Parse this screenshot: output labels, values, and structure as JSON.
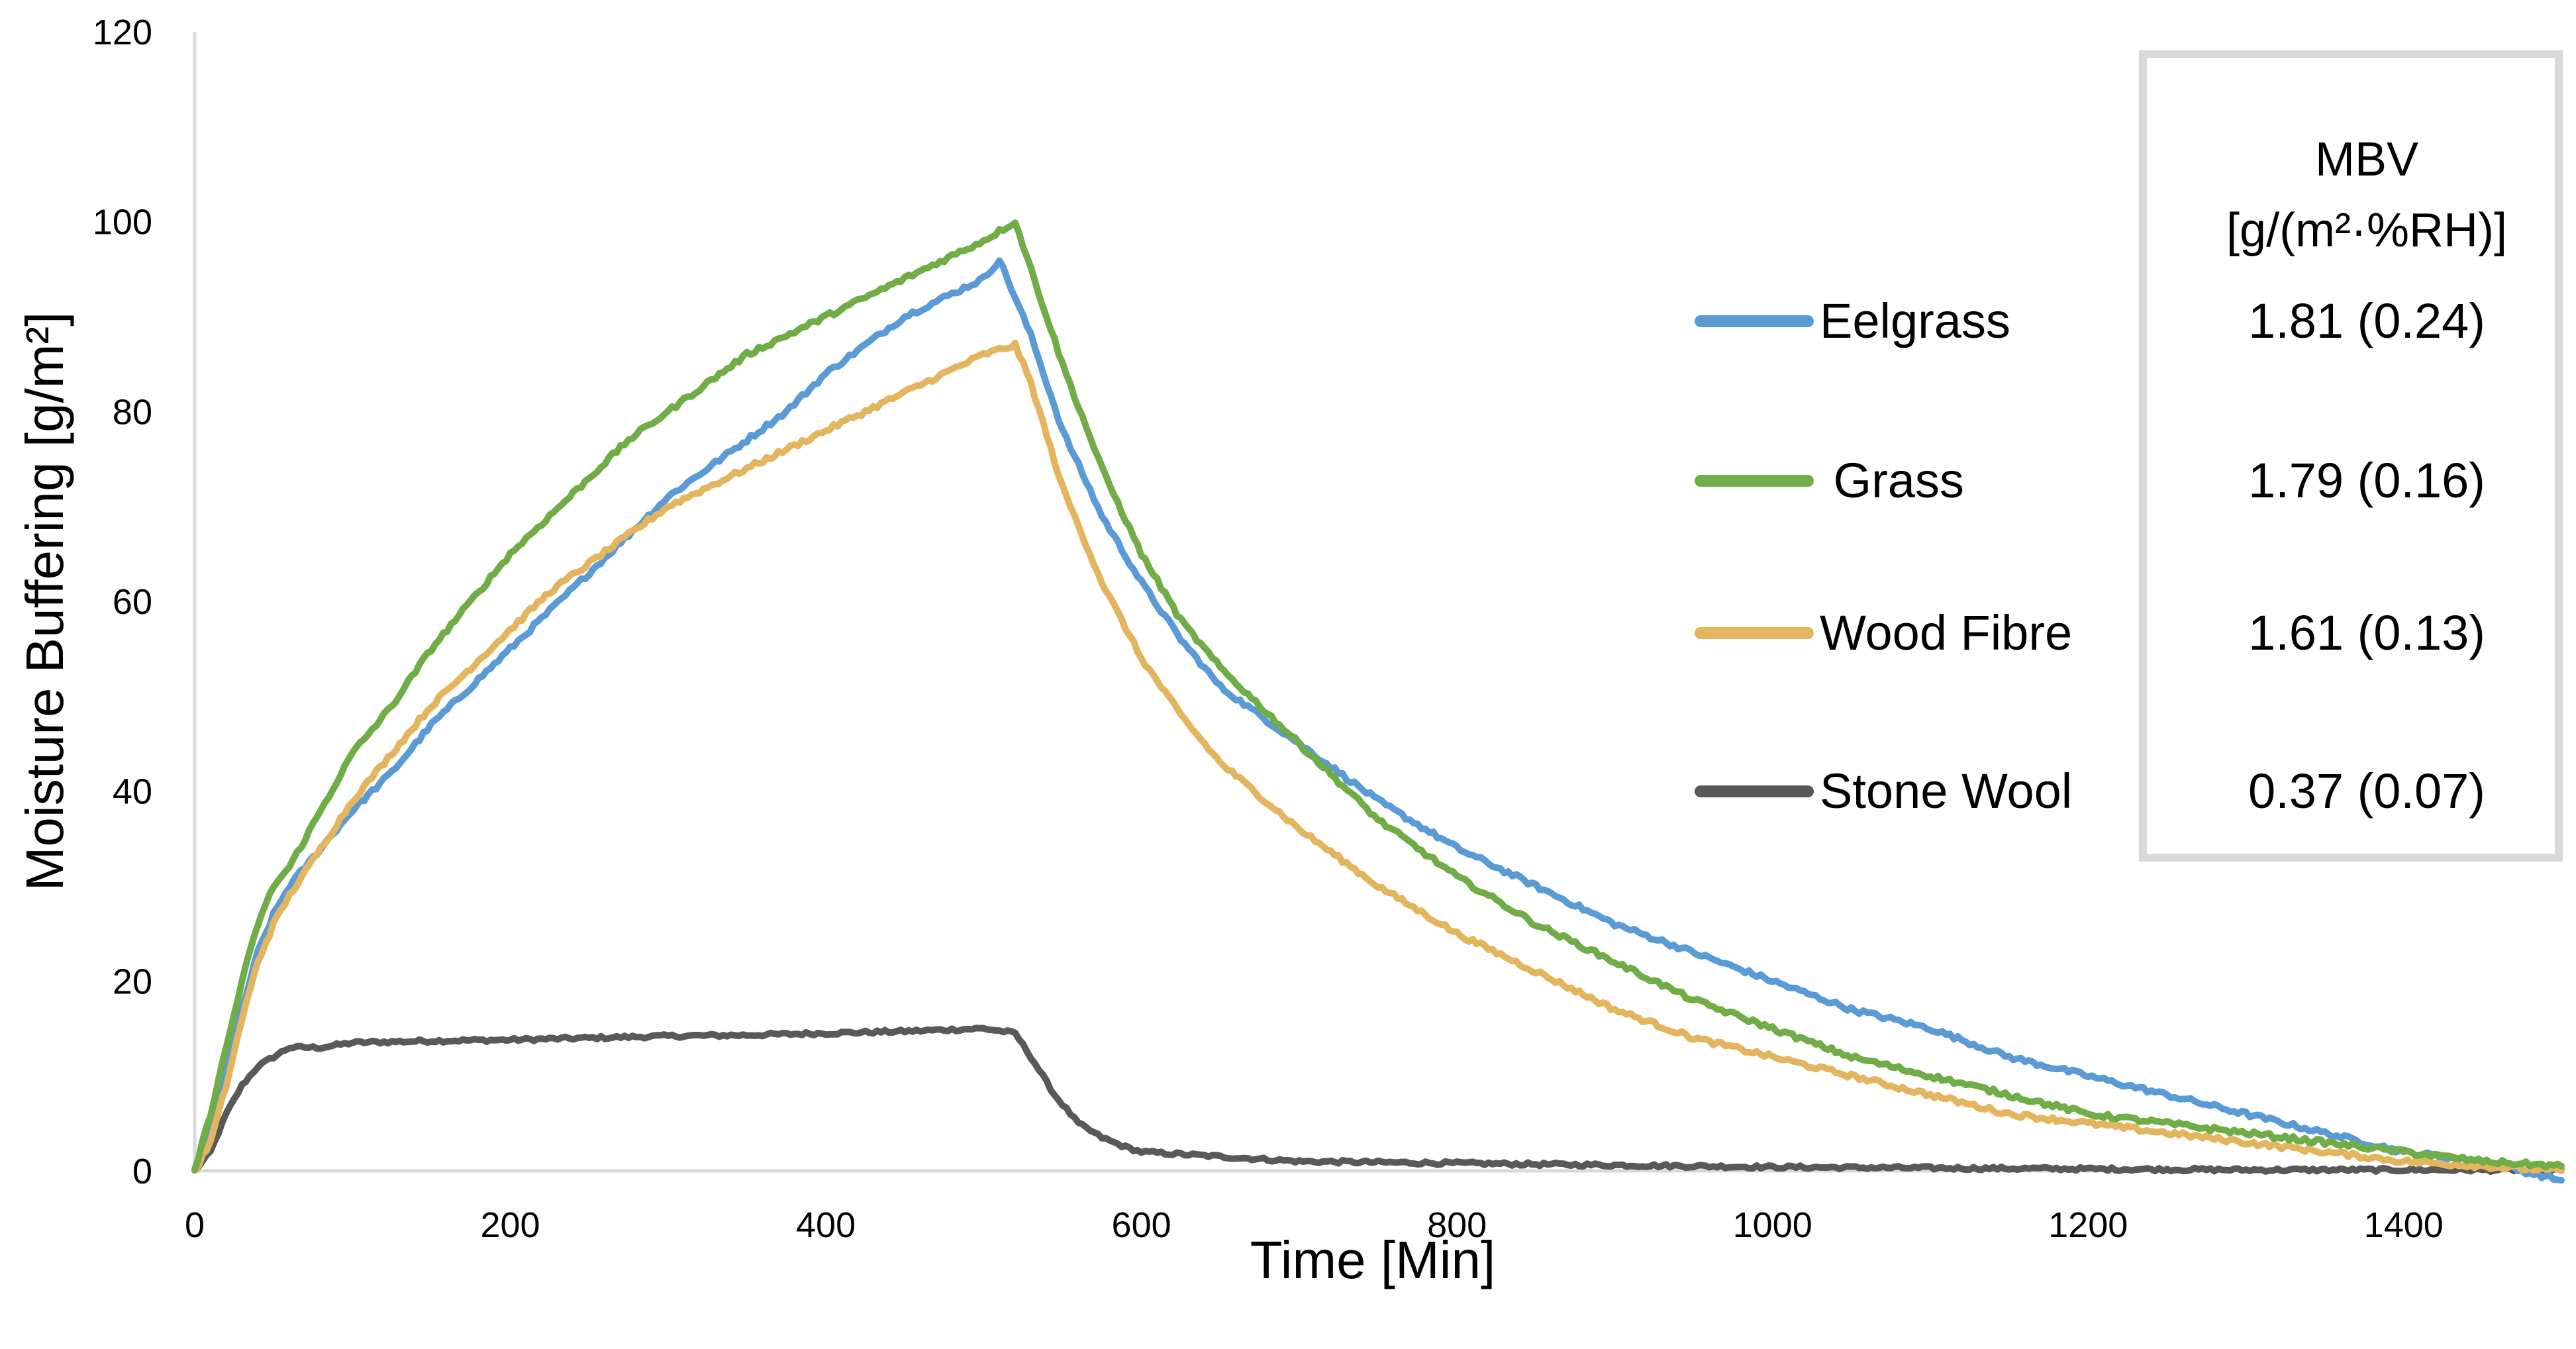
{
  "chart_data": {
    "type": "line",
    "xlabel": "Time [Min]",
    "ylabel": "Moisture Buffering [g/m²]",
    "xlim": [
      0,
      1500
    ],
    "ylim": [
      0,
      120
    ],
    "xticks": [
      0,
      200,
      400,
      600,
      800,
      1000,
      1200,
      1400
    ],
    "yticks": [
      0,
      20,
      40,
      60,
      80,
      100,
      120
    ],
    "grid": false,
    "legend": {
      "placement": "right",
      "header_line1": "MBV",
      "header_line2": "[g/(m²·%RH)]"
    },
    "series": [
      {
        "name": "Eelgrass",
        "mbv": "1.81 (0.24)",
        "color": "#5B9BD5",
        "x": [
          0,
          10,
          20,
          30,
          40,
          50,
          60,
          80,
          100,
          125,
          150,
          175,
          200,
          225,
          250,
          275,
          300,
          325,
          350,
          375,
          400,
          425,
          450,
          475,
          500,
          510,
          530,
          550,
          575,
          600,
          625,
          650,
          700,
          750,
          800,
          850,
          900,
          950,
          1000,
          1050,
          1100,
          1150,
          1200,
          1250,
          1300,
          1350,
          1400,
          1450,
          1500
        ],
        "y": [
          0,
          5,
          11,
          17,
          23,
          27,
          30,
          34,
          38,
          42,
          47,
          51,
          55,
          59,
          63,
          67,
          71,
          74,
          77,
          80,
          84,
          87,
          90,
          92,
          94,
          96,
          88,
          78,
          69,
          62,
          56,
          51,
          45,
          39,
          34,
          30,
          26,
          23,
          20,
          17,
          15,
          12,
          10,
          8,
          6,
          4,
          2,
          1,
          -1
        ]
      },
      {
        "name": " Grass",
        "mbv": "1.79 (0.16)",
        "color": "#70AD47",
        "x": [
          0,
          10,
          20,
          30,
          40,
          50,
          60,
          80,
          100,
          125,
          150,
          175,
          200,
          225,
          250,
          275,
          300,
          325,
          350,
          375,
          400,
          425,
          450,
          475,
          500,
          520,
          530,
          550,
          575,
          600,
          625,
          650,
          700,
          750,
          800,
          850,
          900,
          950,
          1000,
          1050,
          1100,
          1150,
          1200,
          1250,
          1300,
          1350,
          1400,
          1450,
          1500
        ],
        "y": [
          0,
          6,
          13,
          20,
          26,
          30,
          32,
          38,
          44,
          49,
          55,
          60,
          65,
          69,
          73,
          77,
          80,
          83,
          86,
          88,
          90,
          92,
          94,
          96,
          98,
          100,
          95,
          85,
          74,
          65,
          58,
          53,
          45,
          37,
          31,
          26,
          22,
          18,
          15,
          12,
          10,
          8,
          6,
          5,
          4,
          3,
          2,
          1,
          0.5
        ]
      },
      {
        "name": "Wood Fibre",
        "mbv": "1.61 (0.13)",
        "color": "#E3B55E",
        "x": [
          0,
          10,
          20,
          30,
          40,
          50,
          60,
          80,
          100,
          125,
          150,
          175,
          200,
          225,
          250,
          275,
          300,
          325,
          350,
          375,
          400,
          425,
          450,
          475,
          500,
          520,
          530,
          550,
          575,
          600,
          625,
          650,
          700,
          750,
          800,
          850,
          900,
          950,
          1000,
          1050,
          1100,
          1150,
          1200,
          1250,
          1300,
          1350,
          1400,
          1450,
          1500
        ],
        "y": [
          0,
          3,
          9,
          16,
          22,
          26,
          29,
          34,
          39,
          44,
          49,
          53,
          57,
          61,
          64,
          67,
          70,
          72,
          74,
          76,
          78,
          80,
          82,
          84,
          86,
          87,
          83,
          72,
          62,
          54,
          48,
          43,
          36,
          30,
          25,
          21,
          17,
          14,
          12,
          10,
          8,
          6,
          5,
          4,
          3,
          2,
          1,
          0.5,
          0
        ]
      },
      {
        "name": "Stone Wool",
        "mbv": "0.37 (0.07)",
        "color": "#595959",
        "x": [
          0,
          10,
          20,
          30,
          40,
          50,
          60,
          80,
          100,
          150,
          200,
          250,
          300,
          350,
          400,
          450,
          500,
          520,
          530,
          545,
          560,
          575,
          590,
          600,
          650,
          700,
          800,
          900,
          1000,
          1100,
          1200,
          1300,
          1400,
          1500
        ],
        "y": [
          0,
          2,
          6,
          9,
          11,
          12,
          13,
          13,
          13.5,
          13.7,
          13.8,
          14,
          14.2,
          14.3,
          14.5,
          14.7,
          15,
          14.5,
          12,
          8,
          5,
          3.5,
          2.5,
          2,
          1.5,
          1,
          0.8,
          0.6,
          0.4,
          0.3,
          0.2,
          0.1,
          0.1,
          0.1
        ]
      }
    ]
  }
}
